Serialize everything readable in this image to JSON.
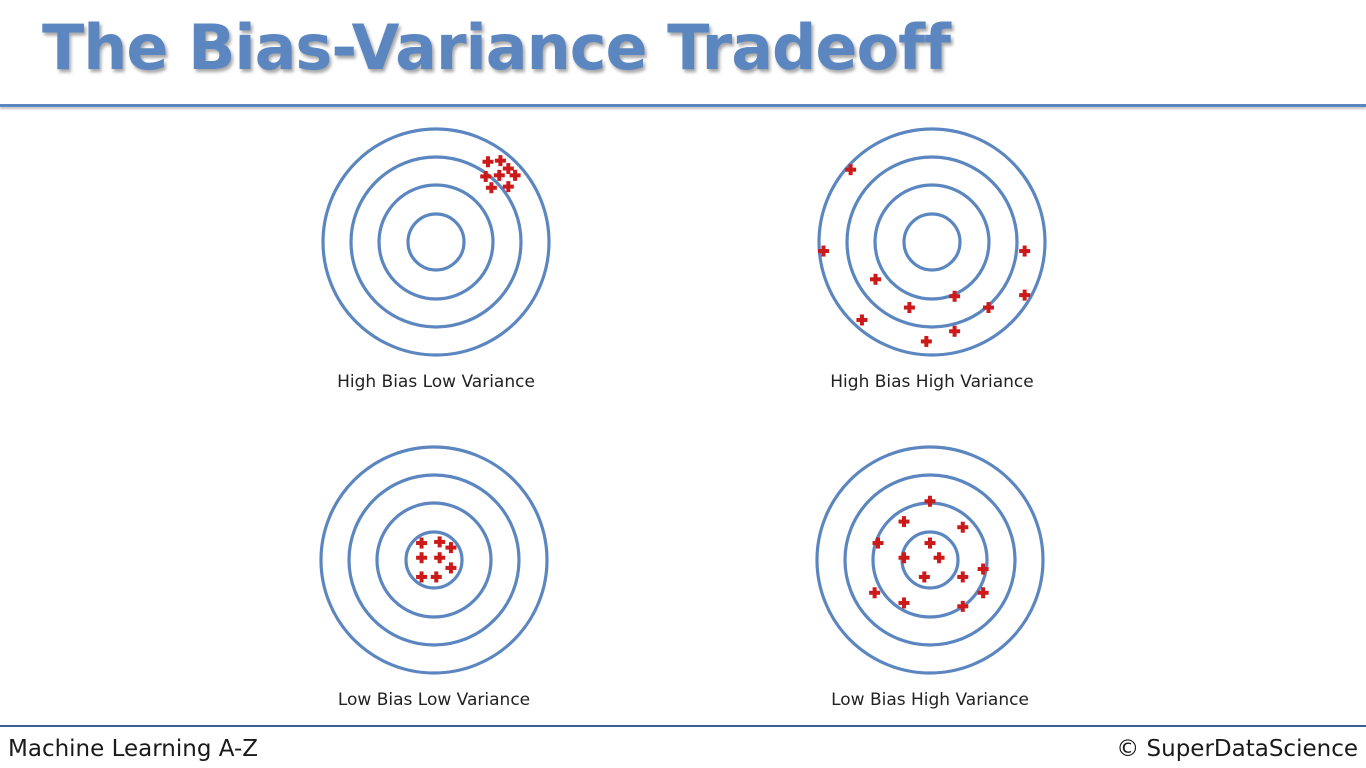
{
  "title": "The Bias-Variance Tradeoff",
  "footer": {
    "left": "Machine Learning A-Z",
    "right": "© SuperDataScience"
  },
  "colors": {
    "accent": "#5c86c0",
    "ring": "#5c86c0",
    "marker": "#cc1a1a"
  },
  "panels": [
    {
      "caption": "High Bias Low Variance",
      "ring_count": 4,
      "hits": [
        [
          0.46,
          -0.71
        ],
        [
          0.57,
          -0.72
        ],
        [
          0.64,
          -0.65
        ],
        [
          0.7,
          -0.59
        ],
        [
          0.56,
          -0.59
        ],
        [
          0.44,
          -0.58
        ],
        [
          0.49,
          -0.48
        ],
        [
          0.64,
          -0.49
        ]
      ]
    },
    {
      "caption": "High Bias High Variance",
      "ring_count": 4,
      "hits": [
        [
          -0.72,
          -0.64
        ],
        [
          -0.96,
          0.08
        ],
        [
          0.82,
          0.08
        ],
        [
          -0.5,
          0.33
        ],
        [
          0.2,
          0.48
        ],
        [
          0.82,
          0.47
        ],
        [
          -0.2,
          0.58
        ],
        [
          0.5,
          0.58
        ],
        [
          -0.62,
          0.69
        ],
        [
          0.2,
          0.79
        ],
        [
          -0.05,
          0.88
        ]
      ]
    },
    {
      "caption": "Low Bias Low Variance",
      "ring_count": 4,
      "hits": [
        [
          -0.11,
          -0.15
        ],
        [
          0.05,
          -0.16
        ],
        [
          0.15,
          -0.11
        ],
        [
          -0.11,
          -0.02
        ],
        [
          0.05,
          -0.02
        ],
        [
          0.15,
          0.07
        ],
        [
          -0.11,
          0.15
        ],
        [
          0.02,
          0.15
        ]
      ]
    },
    {
      "caption": "Low Bias High Variance",
      "ring_count": 4,
      "hits": [
        [
          0.0,
          -0.52
        ],
        [
          -0.23,
          -0.34
        ],
        [
          0.29,
          -0.29
        ],
        [
          -0.46,
          -0.15
        ],
        [
          0.0,
          -0.15
        ],
        [
          -0.23,
          -0.02
        ],
        [
          0.08,
          -0.02
        ],
        [
          -0.05,
          0.15
        ],
        [
          0.29,
          0.15
        ],
        [
          0.47,
          0.08
        ],
        [
          -0.49,
          0.29
        ],
        [
          0.47,
          0.29
        ],
        [
          -0.23,
          0.38
        ],
        [
          0.29,
          0.41
        ]
      ]
    }
  ]
}
